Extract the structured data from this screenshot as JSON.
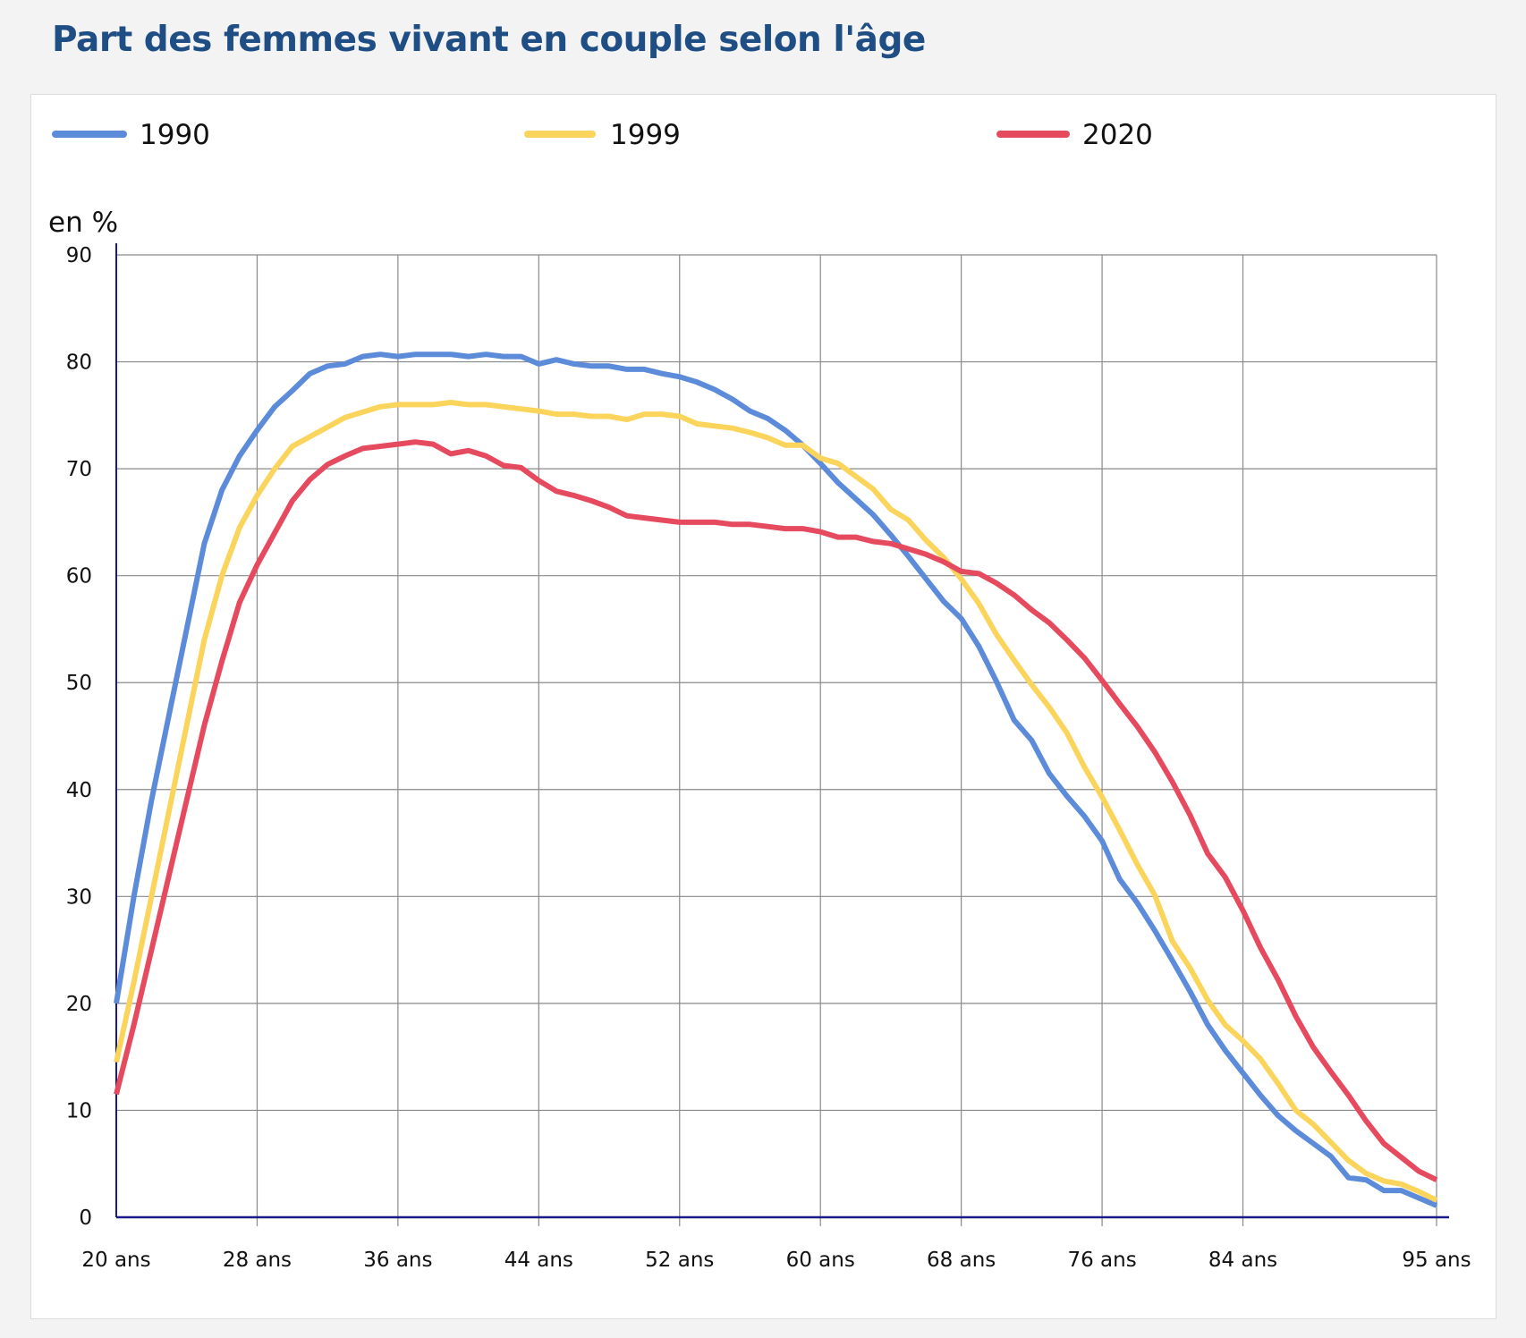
{
  "header": {
    "title": "Part des femmes vivant en couple selon l'âge"
  },
  "chart_data": {
    "type": "line",
    "title": "Part des femmes vivant en couple selon l'âge",
    "ylabel": "en %",
    "xlabel": "",
    "ylim": [
      0,
      90
    ],
    "xlim": [
      20,
      95
    ],
    "yticks": [
      0,
      10,
      20,
      30,
      40,
      50,
      60,
      70,
      80,
      90
    ],
    "xticks": [
      {
        "value": 20,
        "label": "20 ans"
      },
      {
        "value": 28,
        "label": "28 ans"
      },
      {
        "value": 36,
        "label": "36 ans"
      },
      {
        "value": 44,
        "label": "44 ans"
      },
      {
        "value": 52,
        "label": "52 ans"
      },
      {
        "value": 60,
        "label": "60 ans"
      },
      {
        "value": 68,
        "label": "68 ans"
      },
      {
        "value": 76,
        "label": "76 ans"
      },
      {
        "value": 84,
        "label": "84 ans"
      },
      {
        "value": 95,
        "label": "95 ans"
      }
    ],
    "grid": true,
    "legend_position": "top",
    "x": [
      20,
      21,
      22,
      23,
      24,
      25,
      26,
      27,
      28,
      29,
      30,
      31,
      32,
      33,
      34,
      35,
      36,
      37,
      38,
      39,
      40,
      41,
      42,
      43,
      44,
      45,
      46,
      47,
      48,
      49,
      50,
      51,
      52,
      53,
      54,
      55,
      56,
      57,
      58,
      59,
      60,
      61,
      62,
      63,
      64,
      65,
      66,
      67,
      68,
      69,
      70,
      71,
      72,
      73,
      74,
      75,
      76,
      77,
      78,
      79,
      80,
      81,
      82,
      83,
      84,
      85,
      86,
      87,
      88,
      89,
      90,
      91,
      92,
      93,
      94,
      95
    ],
    "series": [
      {
        "name": "1990",
        "color": "#5b8bd9",
        "values": [
          20,
          30,
          39,
          47,
          55,
          63,
          68,
          71.2,
          73.6,
          75.8,
          77.3,
          78.9,
          79.6,
          79.8,
          80.5,
          80.7,
          80.5,
          80.7,
          80.7,
          80.7,
          80.5,
          80.7,
          80.5,
          80.5,
          79.8,
          80.2,
          79.8,
          79.6,
          79.6,
          79.3,
          79.3,
          78.9,
          78.6,
          78.1,
          77.4,
          76.5,
          75.4,
          74.7,
          73.6,
          72.2,
          70.5,
          68.7,
          67.2,
          65.7,
          63.8,
          61.8,
          59.7,
          57.6,
          56.0,
          53.4,
          50.1,
          46.5,
          44.6,
          41.5,
          39.4,
          37.5,
          35.2,
          31.6,
          29.4,
          26.8,
          24.0,
          21.1,
          18.0,
          15.6,
          13.5,
          11.4,
          9.5,
          8.1,
          6.9,
          5.7,
          3.7,
          3.5,
          2.5,
          2.5,
          1.8,
          1.1
        ]
      },
      {
        "name": "1999",
        "color": "#fbd45c",
        "values": [
          14.5,
          22,
          30,
          38,
          46,
          54,
          60,
          64.5,
          67.5,
          70,
          72.1,
          73,
          73.9,
          74.8,
          75.3,
          75.8,
          76,
          76,
          76,
          76.2,
          76,
          76,
          75.8,
          75.6,
          75.4,
          75.1,
          75.1,
          74.9,
          74.9,
          74.6,
          75.1,
          75.1,
          74.9,
          74.2,
          74.0,
          73.8,
          73.4,
          72.9,
          72.2,
          72.2,
          71,
          70.5,
          69.3,
          68.1,
          66.2,
          65.2,
          63.3,
          61.7,
          59.7,
          57.4,
          54.5,
          52.1,
          49.8,
          47.7,
          45.3,
          42.1,
          39.3,
          36.2,
          33.0,
          30.1,
          25.8,
          23.3,
          20.3,
          18.0,
          16.5,
          14.8,
          12.5,
          10.0,
          8.7,
          7.0,
          5.3,
          4.1,
          3.4,
          3.1,
          2.4,
          1.6
        ]
      },
      {
        "name": "2020",
        "color": "#e64a5e",
        "values": [
          11.5,
          18,
          25,
          32,
          39,
          46,
          52,
          57.5,
          61,
          64,
          67,
          69,
          70.4,
          71.2,
          71.9,
          72.1,
          72.3,
          72.5,
          72.3,
          71.4,
          71.7,
          71.2,
          70.3,
          70.1,
          68.9,
          67.9,
          67.5,
          67.0,
          66.4,
          65.6,
          65.4,
          65.2,
          65,
          65,
          65,
          64.8,
          64.8,
          64.6,
          64.4,
          64.4,
          64.1,
          63.6,
          63.6,
          63.2,
          63,
          62.5,
          62,
          61.3,
          60.4,
          60.2,
          59.3,
          58.2,
          56.8,
          55.6,
          54.0,
          52.3,
          50.2,
          48.0,
          45.9,
          43.5,
          40.7,
          37.6,
          34.0,
          31.8,
          28.7,
          25.2,
          22.2,
          18.8,
          15.9,
          13.6,
          11.4,
          9.0,
          6.9,
          5.6,
          4.3,
          3.5
        ]
      }
    ]
  }
}
